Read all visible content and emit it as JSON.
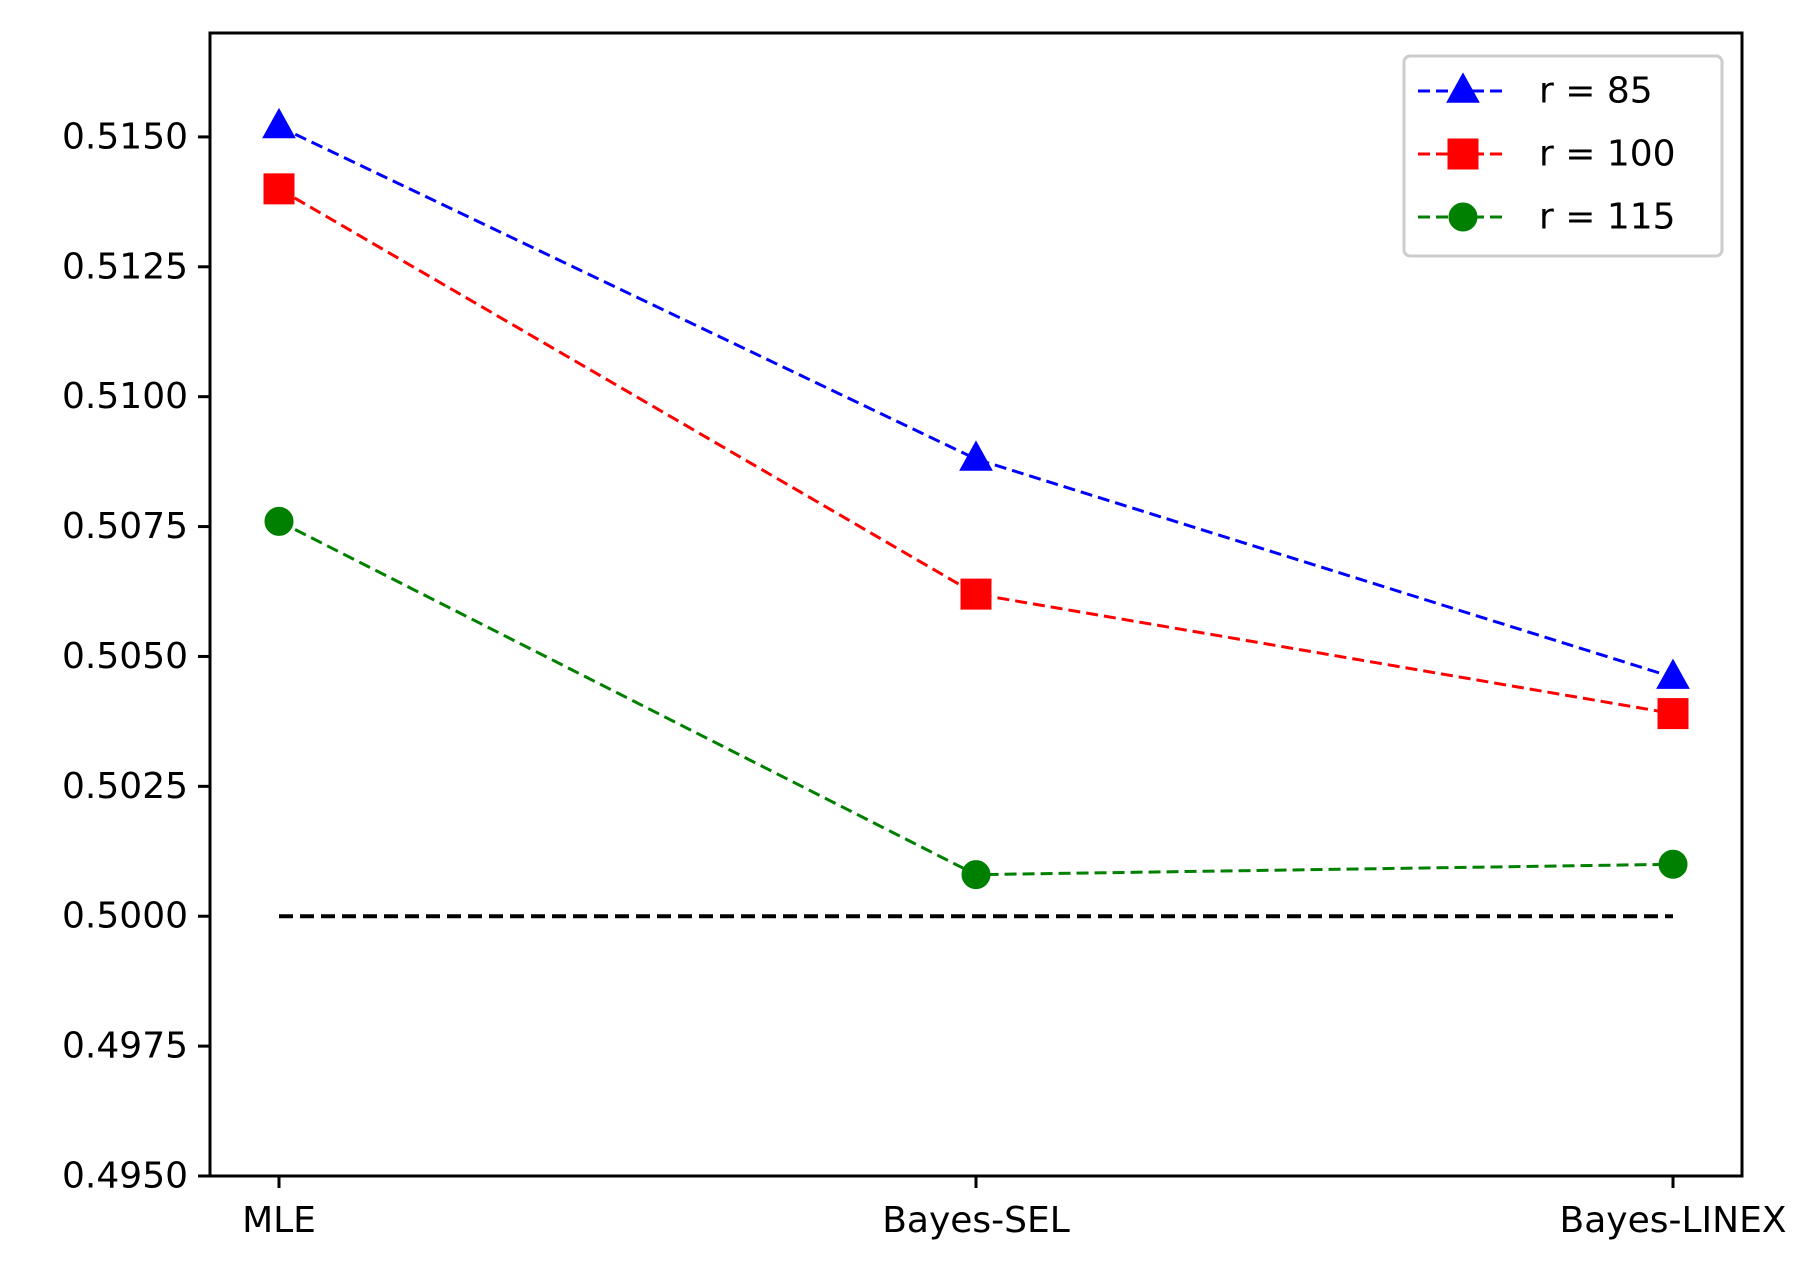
{
  "chart_data": {
    "type": "line",
    "title": "",
    "xlabel": "",
    "ylabel": "",
    "categories": [
      "MLE",
      "Bayes-SEL",
      "Bayes-LINEX"
    ],
    "ylim": [
      0.495,
      0.517
    ],
    "yticks": [
      "0.4950",
      "0.4975",
      "0.5000",
      "0.5025",
      "0.5050",
      "0.5075",
      "0.5100",
      "0.5125",
      "0.5150"
    ],
    "grid": false,
    "legend_position": "top-right",
    "series": [
      {
        "name": "r = 85",
        "values": [
          0.5152,
          0.5088,
          0.5046
        ],
        "color": "#0000ff",
        "marker": "triangle",
        "line_style": "dashed"
      },
      {
        "name": "r = 100",
        "values": [
          0.514,
          0.5062,
          0.5039
        ],
        "color": "#ff0000",
        "marker": "square",
        "line_style": "dashed"
      },
      {
        "name": "r = 115",
        "values": [
          0.5076,
          0.5008,
          0.501
        ],
        "color": "#008000",
        "marker": "circle",
        "line_style": "dashed"
      }
    ],
    "reference_line": {
      "value": 0.5,
      "color": "#000000",
      "line_style": "dashed"
    }
  }
}
